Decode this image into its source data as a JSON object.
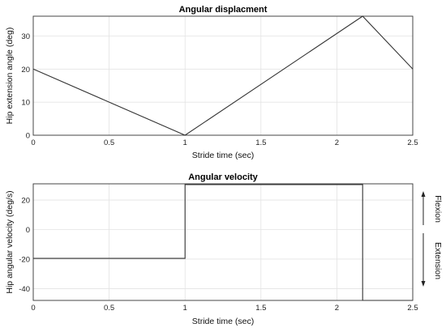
{
  "chart_data": [
    {
      "type": "line",
      "title": "Angular displacment",
      "xlabel": "Stride time (sec)",
      "ylabel": "Hip extension angle (deg)",
      "xlim": [
        0,
        2.5
      ],
      "ylim": [
        0,
        36
      ],
      "xticks": [
        0,
        0.5,
        1,
        1.5,
        2,
        2.5
      ],
      "xtick_labels": [
        "0",
        "0.5",
        "1",
        "1.5",
        "2",
        "2.5"
      ],
      "yticks": [
        0,
        10,
        20,
        30
      ],
      "ytick_labels": [
        "0",
        "10",
        "20",
        "30"
      ],
      "grid": true,
      "x": [
        0,
        1,
        2.17,
        2.5
      ],
      "y": [
        20,
        0,
        36,
        20
      ]
    },
    {
      "type": "line",
      "title": "Angular velocity",
      "xlabel": "Stride time (sec)",
      "ylabel": "Hip angular velocity (deg/s)",
      "xlim": [
        0,
        2.5
      ],
      "ylim": [
        -48,
        31
      ],
      "xticks": [
        0,
        0.5,
        1,
        1.5,
        2,
        2.5
      ],
      "xtick_labels": [
        "0",
        "0.5",
        "1",
        "1.5",
        "2",
        "2.5"
      ],
      "yticks": [
        -40,
        -20,
        0,
        20
      ],
      "ytick_labels": [
        "-40",
        "-20",
        "0",
        "20"
      ],
      "grid": true,
      "x": [
        0,
        1,
        1,
        2.17,
        2.17,
        2.5
      ],
      "y": [
        -19.5,
        -19.5,
        30.5,
        30.5,
        -48,
        -48
      ],
      "annotations": [
        {
          "text": "Flexion",
          "direction": "up"
        },
        {
          "text": "Extension",
          "direction": "down"
        }
      ]
    }
  ]
}
